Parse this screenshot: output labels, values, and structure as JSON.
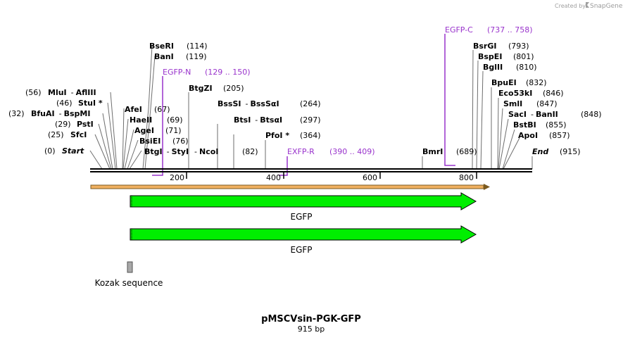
{
  "credit": {
    "prefix": "Created by",
    "brand": "SnapGene"
  },
  "title": "pMSCVsin-PGK-GFP",
  "subtitle": "915 bp",
  "sequence": {
    "start": 0,
    "end": 915,
    "start_label": "Start",
    "end_label": "End"
  },
  "ticks": [
    {
      "value": 200,
      "label": "200"
    },
    {
      "value": 400,
      "label": "400"
    },
    {
      "value": 600,
      "label": "600"
    },
    {
      "value": 800,
      "label": "800"
    }
  ],
  "sites_left": [
    {
      "name": "MluI",
      "joiner": "-",
      "name2": "AflIII",
      "pos": "(56)"
    },
    {
      "name": "StuI *",
      "pos": "(46)"
    },
    {
      "name": "BfuAI",
      "joiner": "-",
      "name2": "BspMI",
      "pos": "(32)"
    },
    {
      "name": "PstI",
      "pos": "(29)"
    },
    {
      "name": "SfcI",
      "pos": "(25)"
    },
    {
      "name": "Start",
      "pos": "(0)"
    }
  ],
  "sites_center": [
    {
      "name": "BseRI",
      "pos": "(114)"
    },
    {
      "name": "BanI",
      "pos": "(119)"
    },
    {
      "name": "AfeI",
      "pos": "(67)"
    },
    {
      "name": "HaeII",
      "pos": "(69)"
    },
    {
      "name": "AgeI",
      "pos": "(71)"
    },
    {
      "name": "BsiEI",
      "pos": "(76)"
    },
    {
      "name": "BtgI",
      "joiner": "-",
      "name2": "StyI",
      "joiner2": "-",
      "name3": "NcoI",
      "pos": "(82)"
    },
    {
      "name": "BtgZI",
      "pos": "(205)"
    },
    {
      "name": "BssSI",
      "joiner": "-",
      "name2": "BssSαI",
      "pos": "(264)"
    },
    {
      "name": "BtsI",
      "joiner": "-",
      "name2": "BtsαI",
      "pos": "(297)"
    },
    {
      "name": "PfoI *",
      "pos": "(364)"
    },
    {
      "name": "BmrI",
      "pos": "(689)"
    }
  ],
  "sites_right": [
    {
      "name": "BsrGI",
      "pos": "(793)"
    },
    {
      "name": "BspEI",
      "pos": "(801)"
    },
    {
      "name": "BglII",
      "pos": "(810)"
    },
    {
      "name": "BpuEI",
      "pos": "(832)"
    },
    {
      "name": "Eco53kI",
      "pos": "(846)"
    },
    {
      "name": "SmlI",
      "pos": "(847)"
    },
    {
      "name": "SacI",
      "joiner": "-",
      "name2": "BanII",
      "pos": "(848)"
    },
    {
      "name": "BstBI",
      "pos": "(855)"
    },
    {
      "name": "ApoI",
      "pos": "(857)"
    },
    {
      "name": "End",
      "pos": "(915)"
    }
  ],
  "primers": [
    {
      "name": "EGFP-N",
      "range": "(129 .. 150)",
      "start": 129,
      "end": 150
    },
    {
      "name": "EGFP-C",
      "range": "(737 .. 758)",
      "start": 737,
      "end": 758
    },
    {
      "name": "EXFP-R",
      "range": "(390 .. 409)",
      "start": 390,
      "end": 409
    }
  ],
  "features": [
    {
      "name": "EGFP",
      "start": 82,
      "end": 802,
      "color": "#00ee00"
    },
    {
      "name": "EGFP",
      "start": 82,
      "end": 802,
      "color": "#00ee00"
    },
    {
      "name": "Kozak sequence",
      "start": 76,
      "end": 85,
      "color": "#a8a8a8"
    }
  ],
  "colors": {
    "primer": "#9933cc",
    "feature_fill": "#00ee00",
    "orange_bar": "#f0b060",
    "kozak": "#a8a8a8"
  }
}
